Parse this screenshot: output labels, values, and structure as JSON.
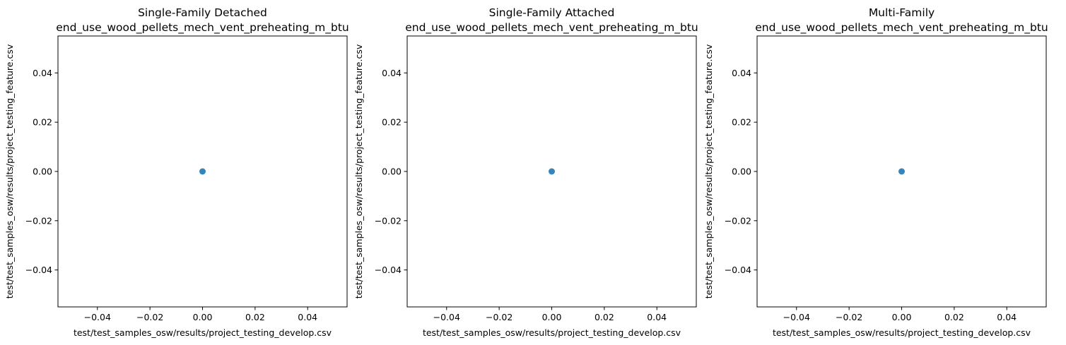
{
  "figure": {
    "background": "#ffffff",
    "marker_color": "#1f77b4"
  },
  "chart_data": [
    {
      "type": "scatter",
      "title": "Single-Family Detached",
      "subtitle": "end_use_wood_pellets_mech_vent_preheating_m_btu",
      "xlabel": "test/test_samples_osw/results/project_testing_develop.csv",
      "ylabel": "test/test_samples_osw/results/project_testing_feature.csv",
      "xlim": [
        -0.055,
        0.055
      ],
      "ylim": [
        -0.055,
        0.055
      ],
      "xticks": [
        -0.04,
        -0.02,
        0.0,
        0.02,
        0.04
      ],
      "xtick_labels": [
        "−0.04",
        "−0.02",
        "0.00",
        "0.02",
        "0.04"
      ],
      "yticks": [
        -0.04,
        -0.02,
        0.0,
        0.02,
        0.04
      ],
      "ytick_labels": [
        "−0.04",
        "−0.02",
        "0.00",
        "0.02",
        "0.04"
      ],
      "grid": false,
      "points": [
        {
          "x": 0.0,
          "y": 0.0
        }
      ]
    },
    {
      "type": "scatter",
      "title": "Single-Family Attached",
      "subtitle": "end_use_wood_pellets_mech_vent_preheating_m_btu",
      "xlabel": "test/test_samples_osw/results/project_testing_develop.csv",
      "ylabel": "test/test_samples_osw/results/project_testing_feature.csv",
      "xlim": [
        -0.055,
        0.055
      ],
      "ylim": [
        -0.055,
        0.055
      ],
      "xticks": [
        -0.04,
        -0.02,
        0.0,
        0.02,
        0.04
      ],
      "xtick_labels": [
        "−0.04",
        "−0.02",
        "0.00",
        "0.02",
        "0.04"
      ],
      "yticks": [
        -0.04,
        -0.02,
        0.0,
        0.02,
        0.04
      ],
      "ytick_labels": [
        "−0.04",
        "−0.02",
        "0.00",
        "0.02",
        "0.04"
      ],
      "grid": false,
      "points": [
        {
          "x": 0.0,
          "y": 0.0
        }
      ]
    },
    {
      "type": "scatter",
      "title": "Multi-Family",
      "subtitle": "end_use_wood_pellets_mech_vent_preheating_m_btu",
      "xlabel": "test/test_samples_osw/results/project_testing_develop.csv",
      "ylabel": "test/test_samples_osw/results/project_testing_feature.csv",
      "xlim": [
        -0.055,
        0.055
      ],
      "ylim": [
        -0.055,
        0.055
      ],
      "xticks": [
        -0.04,
        -0.02,
        0.0,
        0.02,
        0.04
      ],
      "xtick_labels": [
        "−0.04",
        "−0.02",
        "0.00",
        "0.02",
        "0.04"
      ],
      "yticks": [
        -0.04,
        -0.02,
        0.0,
        0.02,
        0.04
      ],
      "ytick_labels": [
        "−0.04",
        "−0.02",
        "0.00",
        "0.02",
        "0.04"
      ],
      "grid": false,
      "points": [
        {
          "x": 0.0,
          "y": 0.0
        }
      ]
    }
  ]
}
